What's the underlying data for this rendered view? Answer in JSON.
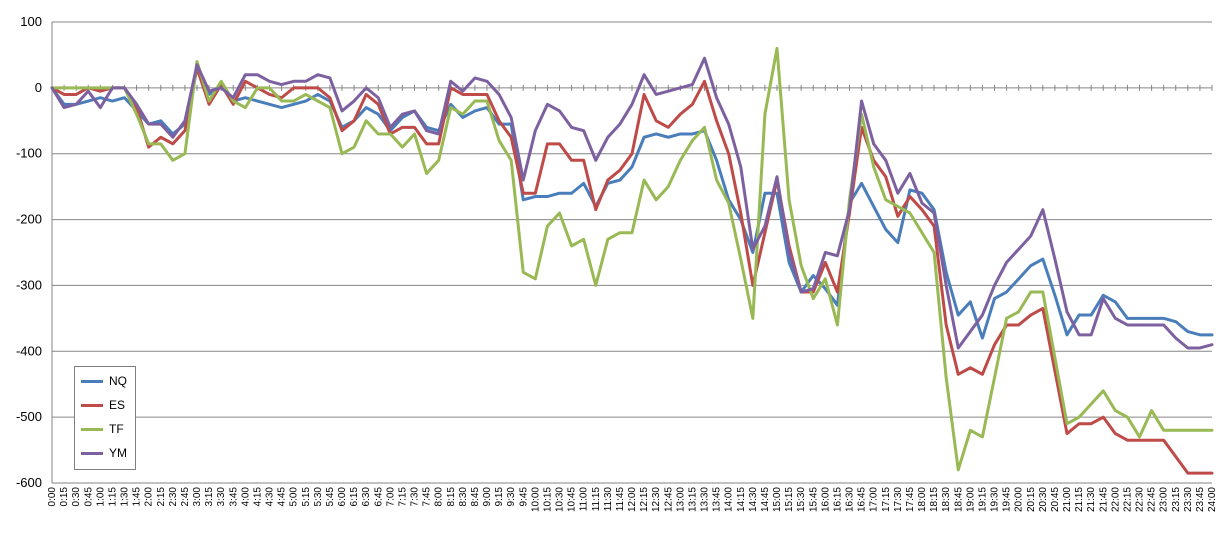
{
  "chart_data": {
    "type": "line",
    "title": "",
    "xlabel": "",
    "ylabel": "",
    "ylim": [
      -600,
      100
    ],
    "yticks": [
      100,
      0,
      -100,
      -200,
      -300,
      -400,
      -500,
      -600
    ],
    "grid": true,
    "legend_position": "bottom-left",
    "x": [
      "0:00",
      "0:15",
      "0:30",
      "0:45",
      "1:00",
      "1:15",
      "1:30",
      "1:45",
      "2:00",
      "2:15",
      "2:30",
      "2:45",
      "3:00",
      "3:15",
      "3:30",
      "3:45",
      "4:00",
      "4:15",
      "4:30",
      "4:45",
      "5:00",
      "5:15",
      "5:30",
      "5:45",
      "6:00",
      "6:15",
      "6:30",
      "6:45",
      "7:00",
      "7:15",
      "7:30",
      "7:45",
      "8:00",
      "8:15",
      "8:30",
      "8:45",
      "9:00",
      "9:15",
      "9:30",
      "9:45",
      "10:00",
      "10:15",
      "10:30",
      "10:45",
      "11:00",
      "11:15",
      "11:30",
      "11:45",
      "12:00",
      "12:15",
      "12:30",
      "12:45",
      "13:00",
      "13:15",
      "13:30",
      "13:45",
      "14:00",
      "14:15",
      "14:30",
      "14:45",
      "15:00",
      "15:15",
      "15:30",
      "15:45",
      "16:00",
      "16:15",
      "16:30",
      "16:45",
      "17:00",
      "17:15",
      "17:30",
      "17:45",
      "18:00",
      "18:15",
      "18:30",
      "18:45",
      "19:00",
      "19:15",
      "19:30",
      "19:45",
      "20:00",
      "20:15",
      "20:30",
      "20:45",
      "21:00",
      "21:15",
      "21:30",
      "21:45",
      "22:00",
      "22:15",
      "22:30",
      "22:45",
      "23:00",
      "23:15",
      "23:30",
      "23:45",
      "24:00"
    ],
    "series": [
      {
        "name": "NQ",
        "color": "#4a7ebb",
        "values": [
          0,
          -25,
          -25,
          -20,
          -15,
          -20,
          -15,
          -35,
          -55,
          -50,
          -70,
          -55,
          30,
          -10,
          5,
          -20,
          -15,
          -20,
          -25,
          -30,
          -25,
          -20,
          -10,
          -20,
          -60,
          -50,
          -30,
          -40,
          -65,
          -45,
          -35,
          -60,
          -65,
          -25,
          -45,
          -35,
          -30,
          -55,
          -55,
          -170,
          -165,
          -165,
          -160,
          -160,
          -145,
          -180,
          -145,
          -140,
          -120,
          -75,
          -70,
          -75,
          -70,
          -70,
          -65,
          -110,
          -170,
          -200,
          -250,
          -160,
          -160,
          -265,
          -310,
          -285,
          -305,
          -330,
          -175,
          -145,
          -180,
          -215,
          -235,
          -155,
          -160,
          -185,
          -280,
          -345,
          -325,
          -380,
          -320,
          -310,
          -290,
          -270,
          -260,
          -315,
          -375,
          -345,
          -345,
          -315,
          -325,
          -350,
          -350,
          -350,
          -350,
          -355,
          -370,
          -375,
          -375
        ]
      },
      {
        "name": "ES",
        "color": "#be4b48",
        "values": [
          0,
          -10,
          -10,
          0,
          -5,
          0,
          0,
          -30,
          -90,
          -75,
          -85,
          -65,
          30,
          -25,
          5,
          -25,
          10,
          0,
          -10,
          -15,
          0,
          0,
          0,
          -15,
          -65,
          -50,
          -10,
          -25,
          -70,
          -60,
          -60,
          -85,
          -85,
          0,
          -10,
          -10,
          -10,
          -50,
          -75,
          -160,
          -160,
          -85,
          -85,
          -110,
          -110,
          -185,
          -140,
          -125,
          -100,
          -10,
          -50,
          -60,
          -40,
          -25,
          10,
          -50,
          -100,
          -190,
          -300,
          -220,
          -140,
          -240,
          -310,
          -310,
          -265,
          -310,
          -190,
          -60,
          -110,
          -135,
          -195,
          -165,
          -185,
          -210,
          -360,
          -435,
          -425,
          -435,
          -390,
          -360,
          -360,
          -345,
          -335,
          -430,
          -525,
          -510,
          -510,
          -500,
          -525,
          -535,
          -535,
          -535,
          -535,
          -560,
          -585,
          -585,
          -585
        ]
      },
      {
        "name": "TF",
        "color": "#98b954",
        "values": [
          0,
          0,
          0,
          0,
          0,
          0,
          0,
          -40,
          -85,
          -85,
          -110,
          -100,
          40,
          -20,
          10,
          -20,
          -30,
          0,
          0,
          -20,
          -20,
          -10,
          -20,
          -30,
          -100,
          -90,
          -50,
          -70,
          -70,
          -90,
          -70,
          -130,
          -110,
          -30,
          -40,
          -20,
          -20,
          -80,
          -110,
          -280,
          -290,
          -210,
          -190,
          -240,
          -230,
          -300,
          -230,
          -220,
          -220,
          -140,
          -170,
          -150,
          -110,
          -80,
          -60,
          -140,
          -175,
          -260,
          -350,
          -40,
          60,
          -170,
          -270,
          -320,
          -290,
          -360,
          -170,
          -40,
          -120,
          -170,
          -180,
          -190,
          -220,
          -250,
          -440,
          -580,
          -520,
          -530,
          -440,
          -350,
          -340,
          -310,
          -310,
          -410,
          -510,
          -500,
          -480,
          -460,
          -490,
          -500,
          -530,
          -490,
          -520,
          -520,
          -520,
          -520,
          -520
        ]
      },
      {
        "name": "YM",
        "color": "#7d60a0",
        "values": [
          0,
          -30,
          -25,
          -5,
          -30,
          0,
          0,
          -25,
          -55,
          -55,
          -75,
          -50,
          35,
          -5,
          0,
          -15,
          20,
          20,
          10,
          5,
          10,
          10,
          20,
          15,
          -35,
          -20,
          0,
          -15,
          -60,
          -40,
          -35,
          -65,
          -70,
          10,
          -5,
          15,
          10,
          -10,
          -45,
          -140,
          -65,
          -25,
          -35,
          -60,
          -65,
          -110,
          -75,
          -55,
          -25,
          20,
          -10,
          -5,
          0,
          5,
          45,
          -15,
          -55,
          -120,
          -245,
          -210,
          -135,
          -250,
          -310,
          -305,
          -250,
          -255,
          -185,
          -20,
          -85,
          -110,
          -160,
          -130,
          -175,
          -190,
          -300,
          -395,
          -370,
          -345,
          -300,
          -265,
          -245,
          -225,
          -185,
          -260,
          -340,
          -375,
          -375,
          -320,
          -350,
          -360,
          -360,
          -360,
          -360,
          -380,
          -395,
          -395,
          -390
        ]
      }
    ]
  },
  "legend": [
    {
      "label": "NQ",
      "color": "#4a7ebb"
    },
    {
      "label": "ES",
      "color": "#be4b48"
    },
    {
      "label": "TF",
      "color": "#98b954"
    },
    {
      "label": "YM",
      "color": "#7d60a0"
    }
  ]
}
